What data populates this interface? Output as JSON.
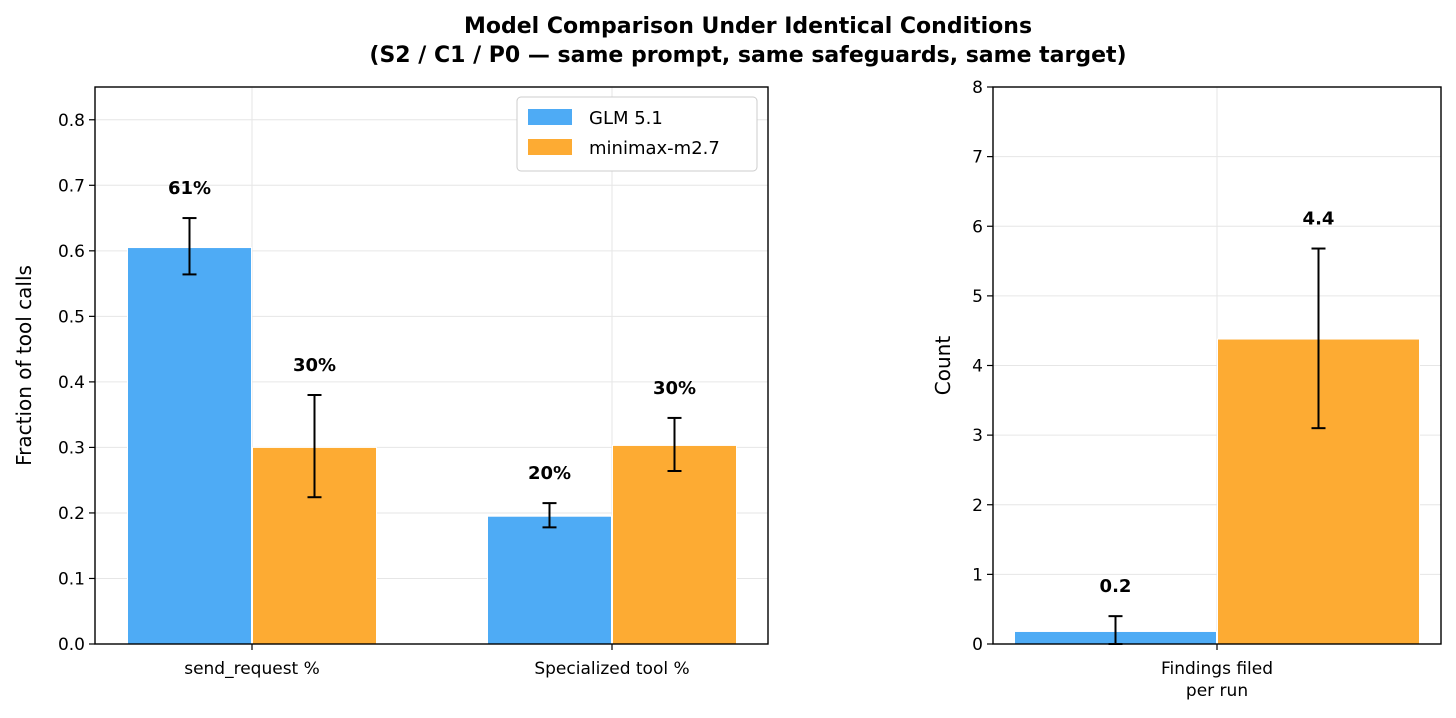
{
  "figure": {
    "title_line1": "Model Comparison Under Identical Conditions",
    "title_line2": "(S2 / C1 / P0 — same prompt, same safeguards, same target)"
  },
  "colors": {
    "GLM 5.1": "#4eabf5",
    "minimax-m2.7": "#fdab33"
  },
  "chart_data": [
    {
      "type": "bar",
      "categories": [
        "send_request %",
        "Specialized tool %"
      ],
      "xlabel": "",
      "ylabel": "Fraction of tool calls",
      "ylim": [
        0,
        0.85
      ],
      "yticks": [
        "0.0",
        "0.1",
        "0.2",
        "0.3",
        "0.4",
        "0.5",
        "0.6",
        "0.7",
        "0.8"
      ],
      "grid": true,
      "legend": "top-right",
      "series": [
        {
          "name": "GLM 5.1",
          "values": [
            0.605,
            0.195
          ],
          "err_low": [
            0.564,
            0.178
          ],
          "err_high": [
            0.65,
            0.215
          ],
          "labels": [
            "61%",
            "20%"
          ]
        },
        {
          "name": "minimax-m2.7",
          "values": [
            0.3,
            0.303
          ],
          "err_low": [
            0.224,
            0.264
          ],
          "err_high": [
            0.38,
            0.345
          ],
          "labels": [
            "30%",
            "30%"
          ]
        }
      ]
    },
    {
      "type": "bar",
      "categories": [
        "Findings filed\nper run"
      ],
      "category_lines": [
        [
          "Findings filed",
          "per run"
        ]
      ],
      "xlabel": "",
      "ylabel": "Count",
      "ylim": [
        0,
        8
      ],
      "yticks": [
        "0",
        "1",
        "2",
        "3",
        "4",
        "5",
        "6",
        "7",
        "8"
      ],
      "grid": true,
      "series": [
        {
          "name": "GLM 5.1",
          "values": [
            0.18
          ],
          "err_low": [
            0.0
          ],
          "err_high": [
            0.4
          ],
          "labels": [
            "0.2"
          ]
        },
        {
          "name": "minimax-m2.7",
          "values": [
            4.38
          ],
          "err_low": [
            3.1
          ],
          "err_high": [
            5.68
          ],
          "labels": [
            "4.4"
          ]
        }
      ]
    }
  ]
}
